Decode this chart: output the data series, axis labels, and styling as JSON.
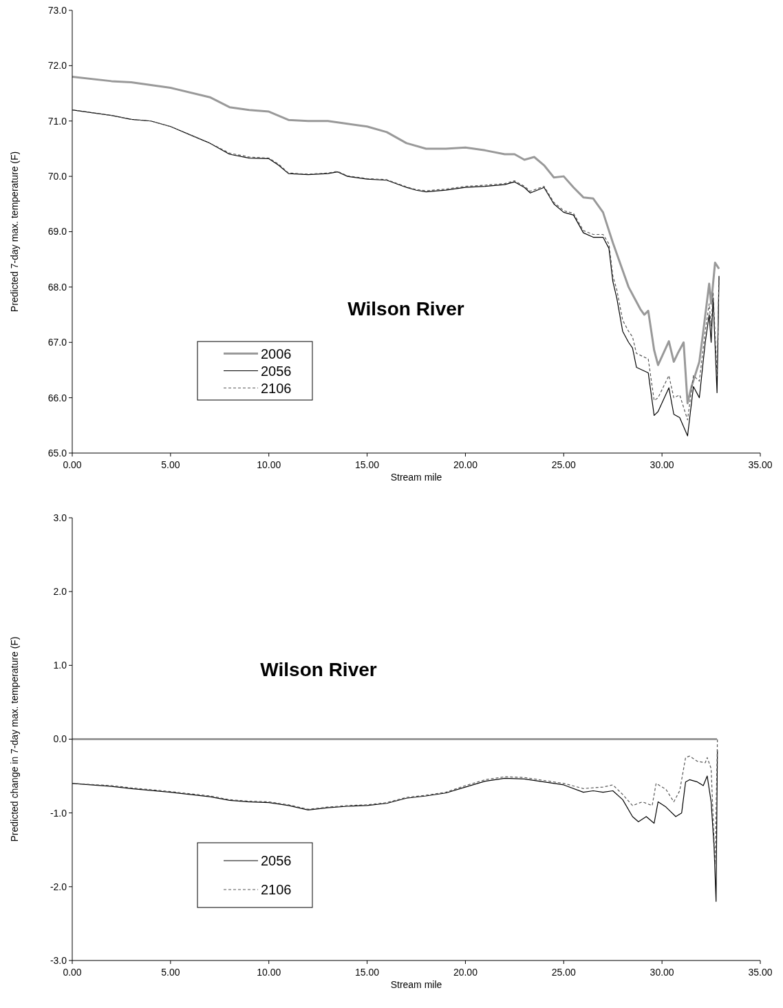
{
  "chart_data": [
    {
      "type": "line",
      "title": "Wilson River",
      "xlabel": "Stream mile",
      "ylabel": "Predicted 7-day max. temperature (F)",
      "legend": "bottom left",
      "grid": false,
      "xlim": [
        0,
        35
      ],
      "xticks": [
        {
          "value": 0,
          "label": "0.00"
        },
        {
          "value": 5,
          "label": "5.00"
        },
        {
          "value": 10,
          "label": "10.00"
        },
        {
          "value": 15,
          "label": "15.00"
        },
        {
          "value": 20,
          "label": "20.00"
        },
        {
          "value": 25,
          "label": "25.00"
        },
        {
          "value": 30,
          "label": "30.00"
        },
        {
          "value": 35,
          "label": "35.00"
        }
      ],
      "ylim": [
        65,
        73
      ],
      "yticks": [
        {
          "value": 65,
          "label": "65.0"
        },
        {
          "value": 66,
          "label": "66.0"
        },
        {
          "value": 67,
          "label": "67.0"
        },
        {
          "value": 68,
          "label": "68.0"
        },
        {
          "value": 69,
          "label": "69.0"
        },
        {
          "value": 70,
          "label": "70.0"
        },
        {
          "value": 71,
          "label": "71.0"
        },
        {
          "value": 72,
          "label": "72.0"
        },
        {
          "value": 73,
          "label": "73.0"
        }
      ],
      "series": [
        {
          "name": "2006",
          "color": "#999999",
          "line_style": "solid",
          "x": [
            0,
            2,
            3,
            5,
            7,
            8,
            9,
            10,
            11,
            12,
            13,
            14,
            15,
            16,
            17,
            18,
            19,
            20,
            21,
            22,
            22.5,
            23,
            23.5,
            24,
            24.5,
            25,
            25.5,
            26,
            26.5,
            27,
            27.5,
            28,
            28.3,
            28.6,
            28.9,
            29.1,
            29.3,
            29.6,
            29.8,
            30.35,
            30.6,
            30.8,
            31.1,
            31.3,
            31.5,
            31.9,
            32.1,
            32.4,
            32.5,
            32.7,
            32.9
          ],
          "values": [
            71.8,
            71.72,
            71.7,
            71.6,
            71.43,
            71.25,
            71.2,
            71.17,
            71.02,
            71.0,
            71.0,
            70.95,
            70.9,
            70.8,
            70.6,
            70.5,
            70.5,
            70.52,
            70.47,
            70.4,
            70.4,
            70.3,
            70.35,
            70.2,
            69.98,
            70.0,
            69.8,
            69.62,
            69.6,
            69.35,
            68.8,
            68.3,
            68.0,
            67.8,
            67.6,
            67.5,
            67.57,
            66.86,
            66.59,
            67.02,
            66.65,
            66.8,
            67.0,
            65.9,
            66.2,
            66.65,
            67.2,
            68.06,
            67.7,
            68.44,
            68.33
          ]
        },
        {
          "name": "2056",
          "color": "#000000",
          "line_style": "solid",
          "x": [
            0,
            2,
            3,
            4,
            5,
            6,
            7,
            8,
            9,
            10,
            10.5,
            11,
            12,
            13,
            13.5,
            14,
            15,
            16,
            17,
            17.5,
            18,
            19,
            20,
            21,
            22,
            22.5,
            23,
            23.3,
            24,
            24.5,
            25,
            25.5,
            26,
            26.5,
            27,
            27.3,
            27.5,
            27.7,
            28,
            28.3,
            28.5,
            28.7,
            29,
            29.3,
            29.6,
            29.8,
            30.35,
            30.6,
            30.9,
            31.3,
            31.6,
            31.9,
            32.2,
            32.4,
            32.5,
            32.6,
            32.8,
            32.9
          ],
          "values": [
            71.2,
            71.1,
            71.03,
            71.0,
            70.9,
            70.75,
            70.6,
            70.4,
            70.33,
            70.32,
            70.2,
            70.05,
            70.03,
            70.05,
            70.08,
            70.0,
            69.95,
            69.93,
            69.8,
            69.75,
            69.72,
            69.75,
            69.8,
            69.82,
            69.85,
            69.9,
            69.8,
            69.7,
            69.8,
            69.5,
            69.35,
            69.3,
            68.98,
            68.9,
            68.9,
            68.7,
            68.1,
            67.8,
            67.2,
            67.0,
            66.9,
            66.55,
            66.5,
            66.45,
            65.68,
            65.75,
            66.18,
            65.7,
            65.64,
            65.31,
            66.2,
            66.0,
            67.0,
            67.5,
            67.0,
            67.8,
            66.09,
            68.2
          ]
        },
        {
          "name": "2106",
          "color": "#555555",
          "line_style": "dashed",
          "x": [
            0,
            2,
            3,
            4,
            5,
            6,
            7,
            8,
            9,
            10,
            10.5,
            11,
            12,
            13,
            13.5,
            14,
            15,
            16,
            17,
            17.5,
            18,
            19,
            20,
            21,
            22,
            22.5,
            23,
            23.3,
            24,
            24.5,
            25,
            25.5,
            26,
            26.5,
            27,
            27.3,
            27.5,
            27.7,
            28,
            28.3,
            28.5,
            28.7,
            29,
            29.3,
            29.6,
            29.8,
            30.35,
            30.6,
            30.9,
            31.3,
            31.6,
            31.9,
            32.2,
            32.4,
            32.5,
            32.6,
            32.8,
            32.9
          ],
          "values": [
            71.2,
            71.1,
            71.03,
            71.0,
            70.9,
            70.75,
            70.6,
            70.42,
            70.35,
            70.33,
            70.22,
            70.06,
            70.04,
            70.06,
            70.09,
            70.01,
            69.96,
            69.94,
            69.81,
            69.76,
            69.74,
            69.77,
            69.82,
            69.84,
            69.87,
            69.92,
            69.82,
            69.73,
            69.82,
            69.53,
            69.38,
            69.33,
            69.02,
            68.95,
            68.95,
            68.78,
            68.2,
            67.95,
            67.4,
            67.2,
            67.1,
            66.8,
            66.75,
            66.7,
            65.95,
            66.0,
            66.4,
            66.0,
            66.05,
            65.6,
            66.4,
            66.3,
            67.2,
            67.7,
            67.3,
            67.9,
            66.4,
            68.2
          ]
        }
      ]
    },
    {
      "type": "line",
      "title": "Wilson River",
      "xlabel": "Stream mile",
      "ylabel": "Predicted change in 7-day max. temperature (F)",
      "legend": "bottom left",
      "grid": false,
      "xlim": [
        0,
        35
      ],
      "xticks": [
        {
          "value": 0,
          "label": "0.00"
        },
        {
          "value": 5,
          "label": "5.00"
        },
        {
          "value": 10,
          "label": "10.00"
        },
        {
          "value": 15,
          "label": "15.00"
        },
        {
          "value": 20,
          "label": "20.00"
        },
        {
          "value": 25,
          "label": "25.00"
        },
        {
          "value": 30,
          "label": "30.00"
        },
        {
          "value": 35,
          "label": "35.00"
        }
      ],
      "ylim": [
        -3,
        3
      ],
      "yticks": [
        {
          "value": -3,
          "label": "-3.0"
        },
        {
          "value": -2,
          "label": "-2.0"
        },
        {
          "value": -1,
          "label": "-1.0"
        },
        {
          "value": 0,
          "label": "0.0"
        },
        {
          "value": 1,
          "label": "1.0"
        },
        {
          "value": 2,
          "label": "2.0"
        },
        {
          "value": 3,
          "label": "3.0"
        }
      ],
      "series": [
        {
          "color": "#999999",
          "line_style": "solid",
          "x": [
            0,
            32.8
          ],
          "values": [
            0,
            0
          ]
        },
        {
          "name": "2056",
          "color": "#000000",
          "line_style": "solid",
          "x": [
            0,
            2,
            3,
            5,
            7,
            8,
            9,
            10,
            11,
            12,
            13,
            14,
            15,
            16,
            17,
            18,
            19,
            20,
            21,
            22,
            23,
            24,
            25,
            26,
            26.5,
            27,
            27.5,
            28,
            28.5,
            28.8,
            29.2,
            29.6,
            29.8,
            30.2,
            30.7,
            31.0,
            31.2,
            31.4,
            31.8,
            32.1,
            32.3,
            32.5,
            32.65,
            32.75,
            32.82
          ],
          "values": [
            -0.6,
            -0.64,
            -0.67,
            -0.72,
            -0.78,
            -0.83,
            -0.85,
            -0.86,
            -0.9,
            -0.96,
            -0.93,
            -0.91,
            -0.9,
            -0.87,
            -0.8,
            -0.77,
            -0.73,
            -0.65,
            -0.57,
            -0.53,
            -0.54,
            -0.58,
            -0.62,
            -0.72,
            -0.7,
            -0.72,
            -0.7,
            -0.82,
            -1.05,
            -1.12,
            -1.05,
            -1.14,
            -0.85,
            -0.92,
            -1.05,
            -1.0,
            -0.58,
            -0.55,
            -0.58,
            -0.63,
            -0.5,
            -0.85,
            -1.47,
            -2.2,
            -0.15
          ]
        },
        {
          "name": "2106",
          "color": "#555555",
          "line_style": "dashed",
          "x": [
            0,
            2,
            3,
            5,
            7,
            8,
            9,
            10,
            11,
            12,
            13,
            14,
            15,
            16,
            17,
            18,
            19,
            20,
            21,
            22,
            23,
            24,
            25,
            26,
            27,
            27.5,
            28,
            28.5,
            29.0,
            29.5,
            29.7,
            30.2,
            30.6,
            30.9,
            31.2,
            31.4,
            31.8,
            32.2,
            32.3,
            32.5,
            32.7,
            32.82
          ],
          "values": [
            -0.6,
            -0.63,
            -0.66,
            -0.71,
            -0.77,
            -0.82,
            -0.84,
            -0.85,
            -0.89,
            -0.95,
            -0.92,
            -0.9,
            -0.89,
            -0.86,
            -0.79,
            -0.76,
            -0.72,
            -0.63,
            -0.55,
            -0.51,
            -0.52,
            -0.56,
            -0.6,
            -0.67,
            -0.65,
            -0.62,
            -0.75,
            -0.9,
            -0.85,
            -0.9,
            -0.6,
            -0.68,
            -0.85,
            -0.7,
            -0.25,
            -0.23,
            -0.3,
            -0.32,
            -0.25,
            -0.4,
            -1.7,
            0
          ]
        }
      ]
    }
  ]
}
